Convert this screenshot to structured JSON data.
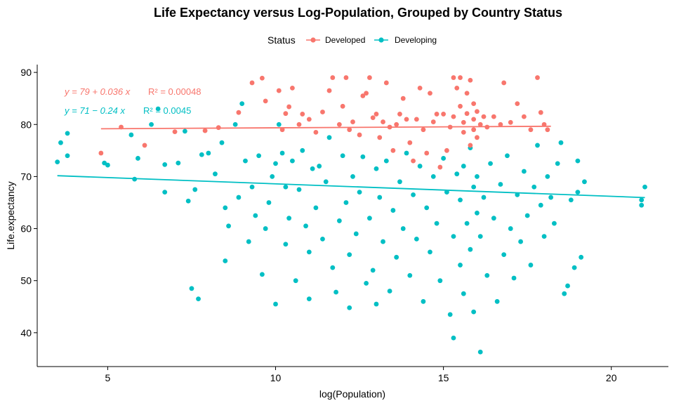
{
  "chart_data": {
    "type": "scatter",
    "title": "Life Expectancy versus Log-Population, Grouped by Country Status",
    "xlabel": "log(Population)",
    "ylabel": "Life.expectancy",
    "xlim": [
      2.9,
      21.7
    ],
    "ylim": [
      33.5,
      91.5
    ],
    "xticks": [
      5,
      10,
      15,
      20
    ],
    "yticks": [
      40,
      50,
      60,
      70,
      80,
      90
    ],
    "grid": false,
    "legend": {
      "title": "Status",
      "placement": "top",
      "entries": [
        "Developed",
        "Developing"
      ]
    },
    "colors": {
      "Developed": "#F8766D",
      "Developing": "#00BFC4"
    },
    "series": [
      {
        "name": "Developed",
        "regression": {
          "intercept": 79,
          "slope": 0.036,
          "x_range": [
            4.8,
            18.2
          ]
        },
        "equation_label": "y = 79 + 0.036 x",
        "r2_label": "R² = 0.00048",
        "points": [
          [
            4.8,
            74.5
          ],
          [
            5.4,
            79.5
          ],
          [
            6.1,
            76.0
          ],
          [
            7.0,
            78.6
          ],
          [
            7.9,
            78.8
          ],
          [
            8.3,
            79.4
          ],
          [
            8.9,
            82.3
          ],
          [
            9.3,
            88.0
          ],
          [
            9.6,
            88.9
          ],
          [
            9.7,
            84.5
          ],
          [
            10.1,
            86.5
          ],
          [
            10.2,
            79.0
          ],
          [
            10.3,
            82.1
          ],
          [
            10.4,
            83.4
          ],
          [
            10.5,
            87.0
          ],
          [
            10.7,
            80.0
          ],
          [
            10.8,
            82.0
          ],
          [
            11.0,
            81.0
          ],
          [
            11.2,
            78.5
          ],
          [
            11.4,
            82.4
          ],
          [
            11.6,
            86.5
          ],
          [
            11.7,
            89.0
          ],
          [
            11.9,
            80.0
          ],
          [
            12.0,
            83.5
          ],
          [
            12.1,
            89.0
          ],
          [
            12.2,
            79.0
          ],
          [
            12.3,
            80.5
          ],
          [
            12.5,
            78.0
          ],
          [
            12.6,
            85.5
          ],
          [
            12.7,
            86.0
          ],
          [
            12.8,
            89.0
          ],
          [
            12.9,
            81.3
          ],
          [
            13.0,
            82.0
          ],
          [
            13.1,
            77.5
          ],
          [
            13.2,
            80.5
          ],
          [
            13.3,
            88.0
          ],
          [
            13.4,
            79.5
          ],
          [
            13.5,
            75.0
          ],
          [
            13.6,
            80.0
          ],
          [
            13.7,
            82.0
          ],
          [
            13.8,
            85.0
          ],
          [
            13.9,
            81.0
          ],
          [
            14.0,
            76.5
          ],
          [
            14.1,
            73.0
          ],
          [
            14.2,
            81.0
          ],
          [
            14.3,
            87.0
          ],
          [
            14.4,
            79.0
          ],
          [
            14.5,
            74.5
          ],
          [
            14.6,
            86.0
          ],
          [
            14.7,
            80.5
          ],
          [
            14.8,
            82.0
          ],
          [
            14.9,
            71.8
          ],
          [
            15.0,
            82.0
          ],
          [
            15.1,
            75.0
          ],
          [
            15.2,
            79.5
          ],
          [
            15.3,
            81.5
          ],
          [
            15.3,
            89.0
          ],
          [
            15.4,
            87.0
          ],
          [
            15.5,
            89.0
          ],
          [
            15.5,
            83.5
          ],
          [
            15.6,
            78.5
          ],
          [
            15.6,
            80.4
          ],
          [
            15.7,
            86.0
          ],
          [
            15.7,
            82.1
          ],
          [
            15.8,
            88.5
          ],
          [
            15.8,
            76.0
          ],
          [
            15.9,
            81.0
          ],
          [
            15.9,
            84.0
          ],
          [
            15.9,
            79.0
          ],
          [
            16.0,
            82.5
          ],
          [
            16.0,
            77.5
          ],
          [
            16.1,
            80.0
          ],
          [
            16.2,
            81.5
          ],
          [
            16.3,
            79.5
          ],
          [
            16.5,
            81.5
          ],
          [
            16.7,
            80.0
          ],
          [
            16.8,
            88.0
          ],
          [
            17.0,
            80.4
          ],
          [
            17.2,
            84.0
          ],
          [
            17.4,
            81.5
          ],
          [
            17.6,
            79.0
          ],
          [
            17.8,
            89.0
          ],
          [
            17.9,
            82.3
          ],
          [
            18.0,
            80.0
          ],
          [
            18.1,
            79.0
          ]
        ]
      },
      {
        "name": "Developing",
        "regression": {
          "intercept": 71,
          "slope": -0.24,
          "x_range": [
            3.5,
            21.0
          ]
        },
        "equation_label": "y = 71 − 0.24 x",
        "r2_label": "R² = 0.0045",
        "points": [
          [
            3.5,
            72.8
          ],
          [
            3.6,
            76.5
          ],
          [
            3.8,
            78.3
          ],
          [
            3.8,
            74.0
          ],
          [
            4.9,
            72.6
          ],
          [
            5.0,
            72.2
          ],
          [
            5.7,
            78.0
          ],
          [
            5.8,
            69.5
          ],
          [
            5.9,
            73.5
          ],
          [
            6.3,
            80.0
          ],
          [
            6.5,
            83.0
          ],
          [
            6.7,
            67.0
          ],
          [
            6.7,
            72.3
          ],
          [
            7.1,
            72.6
          ],
          [
            7.3,
            78.7
          ],
          [
            7.4,
            65.3
          ],
          [
            7.5,
            48.5
          ],
          [
            7.6,
            67.5
          ],
          [
            7.7,
            46.5
          ],
          [
            7.8,
            74.2
          ],
          [
            8.0,
            74.5
          ],
          [
            8.2,
            70.5
          ],
          [
            8.4,
            76.5
          ],
          [
            8.5,
            64.0
          ],
          [
            8.5,
            53.8
          ],
          [
            8.6,
            60.5
          ],
          [
            8.8,
            80.0
          ],
          [
            8.9,
            66.0
          ],
          [
            9.0,
            84.0
          ],
          [
            9.1,
            73.0
          ],
          [
            9.2,
            57.5
          ],
          [
            9.3,
            68.0
          ],
          [
            9.4,
            62.5
          ],
          [
            9.5,
            74.0
          ],
          [
            9.6,
            51.2
          ],
          [
            9.7,
            60.0
          ],
          [
            9.8,
            65.0
          ],
          [
            9.9,
            70.0
          ],
          [
            10.0,
            72.5
          ],
          [
            10.0,
            45.5
          ],
          [
            10.1,
            80.0
          ],
          [
            10.2,
            74.5
          ],
          [
            10.3,
            68.0
          ],
          [
            10.3,
            57.0
          ],
          [
            10.4,
            62.0
          ],
          [
            10.5,
            73.0
          ],
          [
            10.6,
            50.0
          ],
          [
            10.7,
            67.5
          ],
          [
            10.8,
            75.0
          ],
          [
            10.9,
            60.5
          ],
          [
            11.0,
            55.5
          ],
          [
            11.0,
            46.5
          ],
          [
            11.1,
            71.5
          ],
          [
            11.2,
            64.0
          ],
          [
            11.3,
            72.0
          ],
          [
            11.4,
            58.0
          ],
          [
            11.5,
            69.0
          ],
          [
            11.6,
            77.5
          ],
          [
            11.7,
            52.5
          ],
          [
            11.8,
            47.8
          ],
          [
            11.9,
            61.5
          ],
          [
            12.0,
            74.0
          ],
          [
            12.1,
            65.0
          ],
          [
            12.2,
            55.0
          ],
          [
            12.2,
            44.8
          ],
          [
            12.3,
            70.0
          ],
          [
            12.4,
            59.0
          ],
          [
            12.5,
            67.0
          ],
          [
            12.6,
            73.8
          ],
          [
            12.7,
            49.5
          ],
          [
            12.8,
            62.0
          ],
          [
            12.9,
            52.0
          ],
          [
            13.0,
            45.5
          ],
          [
            13.0,
            71.5
          ],
          [
            13.1,
            66.0
          ],
          [
            13.2,
            57.5
          ],
          [
            13.3,
            73.0
          ],
          [
            13.4,
            48.0
          ],
          [
            13.5,
            63.5
          ],
          [
            13.6,
            54.5
          ],
          [
            13.7,
            69.0
          ],
          [
            13.8,
            60.0
          ],
          [
            13.9,
            74.5
          ],
          [
            14.0,
            51.0
          ],
          [
            14.1,
            66.5
          ],
          [
            14.2,
            58.0
          ],
          [
            14.3,
            72.0
          ],
          [
            14.4,
            46.0
          ],
          [
            14.5,
            64.0
          ],
          [
            14.6,
            55.5
          ],
          [
            14.7,
            70.0
          ],
          [
            14.8,
            61.0
          ],
          [
            14.9,
            50.0
          ],
          [
            15.0,
            73.5
          ],
          [
            15.1,
            67.0
          ],
          [
            15.2,
            43.5
          ],
          [
            15.3,
            58.5
          ],
          [
            15.3,
            39.0
          ],
          [
            15.4,
            70.5
          ],
          [
            15.5,
            53.0
          ],
          [
            15.5,
            65.5
          ],
          [
            15.6,
            72.0
          ],
          [
            15.6,
            47.5
          ],
          [
            15.7,
            61.0
          ],
          [
            15.8,
            75.5
          ],
          [
            15.8,
            56.0
          ],
          [
            15.9,
            68.0
          ],
          [
            15.9,
            44.0
          ],
          [
            16.0,
            63.0
          ],
          [
            16.0,
            70.0
          ],
          [
            16.1,
            36.3
          ],
          [
            16.1,
            58.5
          ],
          [
            16.2,
            66.0
          ],
          [
            16.3,
            51.0
          ],
          [
            16.4,
            72.5
          ],
          [
            16.5,
            62.0
          ],
          [
            16.6,
            46.0
          ],
          [
            16.7,
            68.5
          ],
          [
            16.8,
            55.0
          ],
          [
            16.9,
            74.0
          ],
          [
            17.0,
            60.0
          ],
          [
            17.1,
            50.5
          ],
          [
            17.2,
            66.5
          ],
          [
            17.3,
            57.5
          ],
          [
            17.4,
            71.0
          ],
          [
            17.5,
            62.5
          ],
          [
            17.6,
            53.0
          ],
          [
            17.7,
            68.0
          ],
          [
            17.8,
            76.0
          ],
          [
            17.9,
            64.5
          ],
          [
            18.0,
            58.5
          ],
          [
            18.1,
            70.0
          ],
          [
            18.2,
            66.0
          ],
          [
            18.3,
            61.0
          ],
          [
            18.4,
            72.5
          ],
          [
            18.5,
            76.5
          ],
          [
            18.6,
            47.5
          ],
          [
            18.7,
            49.0
          ],
          [
            18.8,
            65.5
          ],
          [
            18.9,
            52.5
          ],
          [
            19.0,
            67.0
          ],
          [
            19.0,
            73.0
          ],
          [
            19.1,
            54.5
          ],
          [
            19.2,
            69.0
          ],
          [
            20.9,
            64.5
          ],
          [
            21.0,
            68.0
          ],
          [
            20.9,
            65.5
          ]
        ]
      }
    ]
  }
}
